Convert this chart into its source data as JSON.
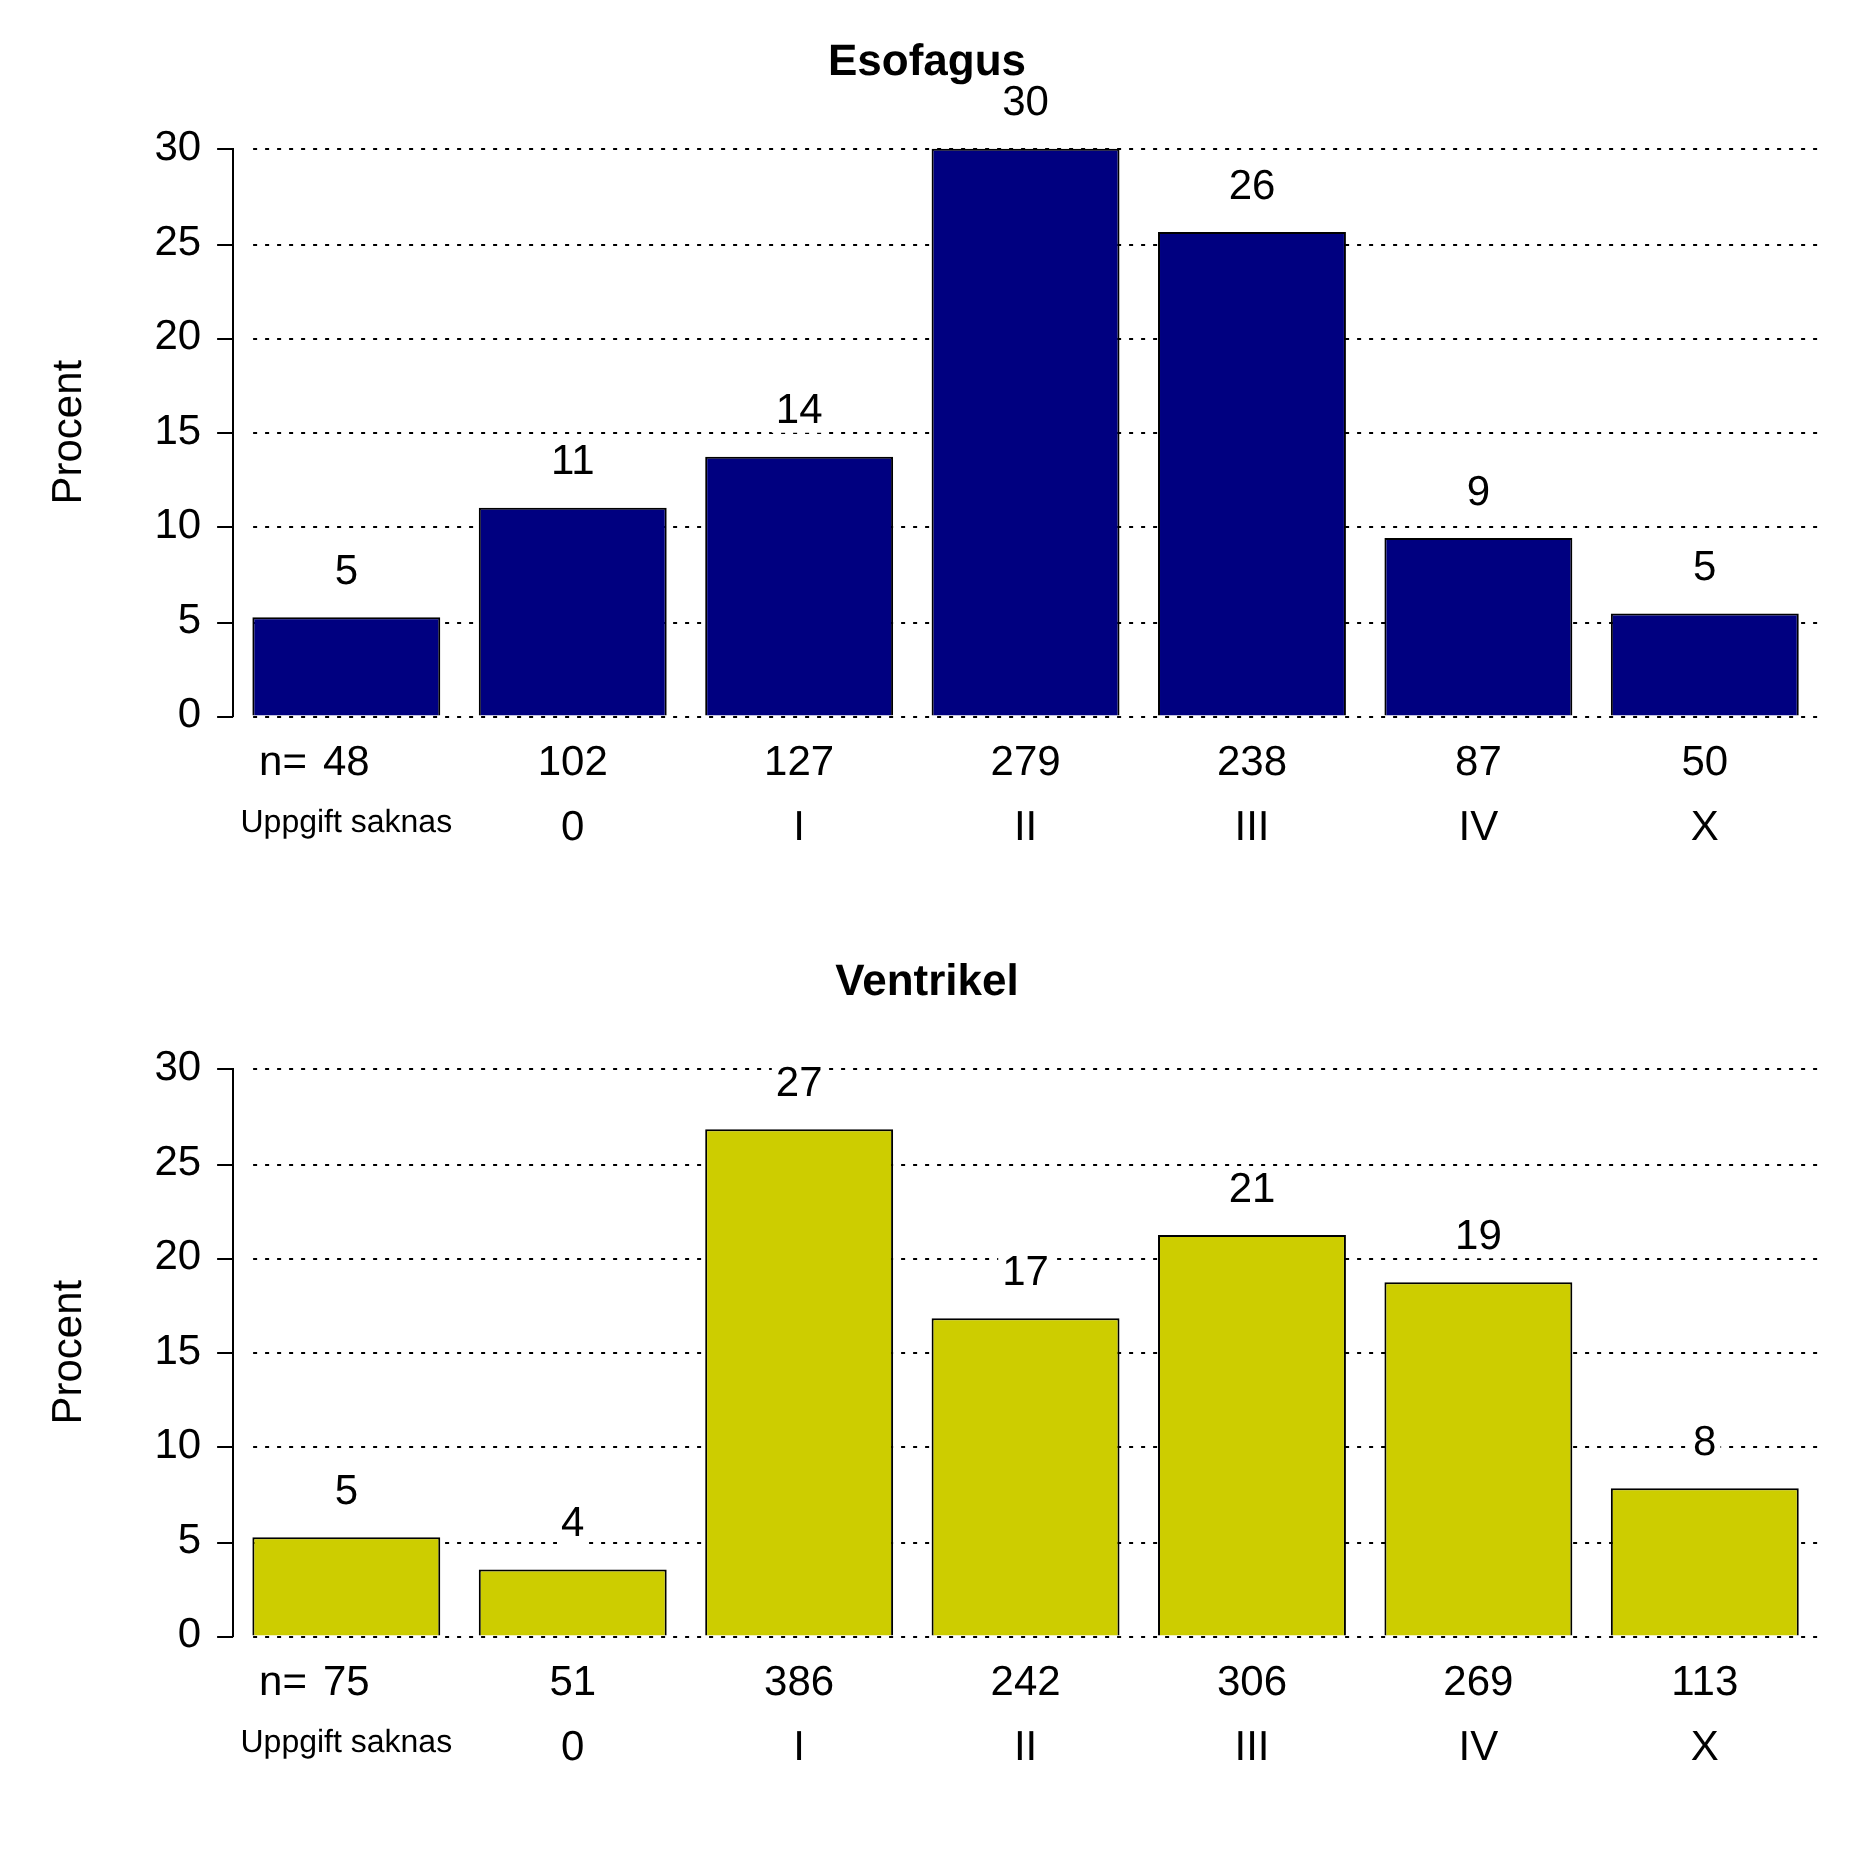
{
  "chart_data": [
    {
      "type": "bar",
      "title": "Esofagus",
      "ylabel": "Procent",
      "categories": [
        "Uppgift saknas",
        "0",
        "I",
        "II",
        "III",
        "IV",
        "X"
      ],
      "values": [
        5.2,
        11.0,
        13.7,
        30.0,
        25.6,
        9.4,
        5.4
      ],
      "color": "#000080",
      "value_labels": [
        "5",
        "11",
        "14",
        "30",
        "26",
        "9",
        "5"
      ],
      "ylim": [
        0,
        30
      ],
      "yticks": [
        0,
        5,
        10,
        15,
        20,
        25,
        30
      ],
      "grid": "y",
      "annotations": [
        "n=",
        "48",
        "102",
        "127",
        "279",
        "238",
        "87",
        "50"
      ]
    },
    {
      "type": "bar",
      "title": "Ventrikel",
      "ylabel": "Procent",
      "categories": [
        "Uppgift saknas",
        "0",
        "I",
        "II",
        "III",
        "IV",
        "X"
      ],
      "values": [
        5.2,
        3.5,
        26.8,
        16.8,
        21.2,
        18.7,
        7.8
      ],
      "color": "#cdcd00",
      "value_labels": [
        "5",
        "4",
        "27",
        "17",
        "21",
        "19",
        "8"
      ],
      "ylim": [
        0,
        30
      ],
      "yticks": [
        0,
        5,
        10,
        15,
        20,
        25,
        30
      ],
      "grid": "y",
      "annotations": [
        "n=",
        "75",
        "51",
        "386",
        "242",
        "306",
        "269",
        "113"
      ]
    }
  ]
}
